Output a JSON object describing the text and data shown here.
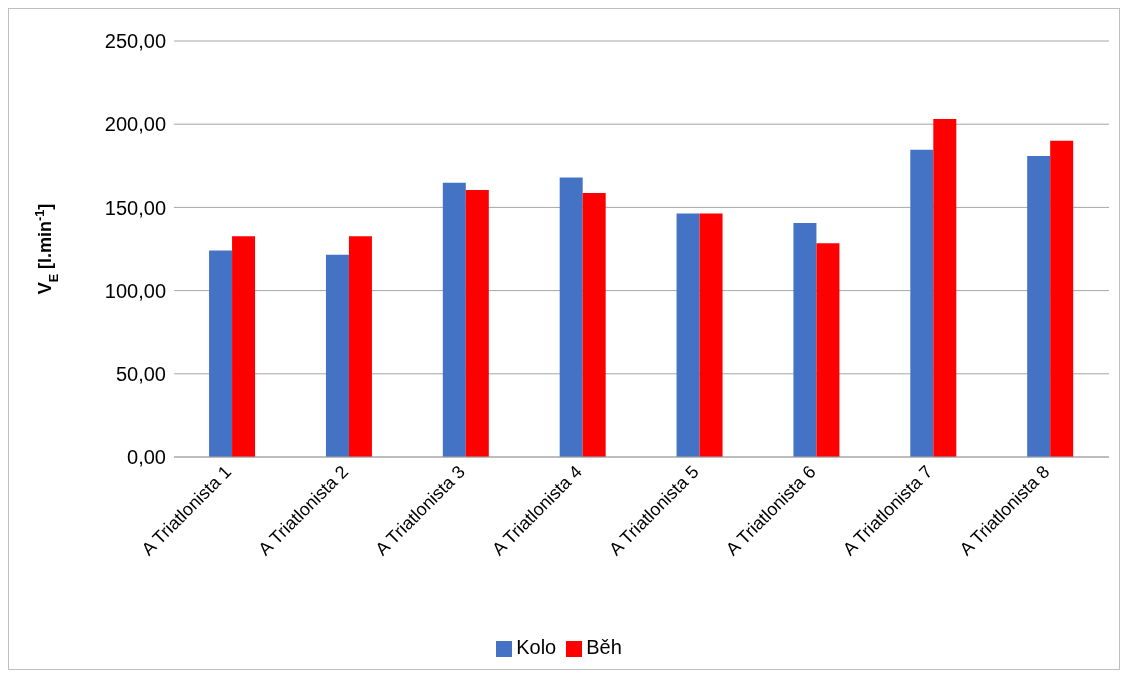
{
  "chart_data": {
    "type": "bar",
    "ylabel": "V$_{E}$ [l.min$^{-1}$]",
    "categories": [
      "A Triatlonista 1",
      "A Triatlonista 2",
      "A Triatlonista 3",
      "A Triatlonista 4",
      "A Triatlonista 5",
      "A Triatlonista 6",
      "A Triatlonista 7",
      "A Triatlonista 8"
    ],
    "series": [
      {
        "name": "Kolo",
        "color": "#4472c4",
        "values": [
          124.1,
          121.6,
          164.8,
          167.9,
          146.3,
          140.7,
          184.6,
          180.9
        ]
      },
      {
        "name": "Běh",
        "color": "#ff0000",
        "values": [
          132.7,
          132.7,
          160.5,
          158.6,
          146.3,
          128.4,
          203.1,
          190.1
        ]
      }
    ],
    "ylim": [
      0,
      250
    ],
    "yticks": [
      {
        "value": 0,
        "label": "0,00"
      },
      {
        "value": 50,
        "label": "50,00"
      },
      {
        "value": 100,
        "label": "100,00"
      },
      {
        "value": 150,
        "label": "150,00"
      },
      {
        "value": 200,
        "label": "200,00"
      },
      {
        "value": 250,
        "label": "250,00"
      }
    ],
    "grid": "y",
    "legend": "bottom"
  }
}
